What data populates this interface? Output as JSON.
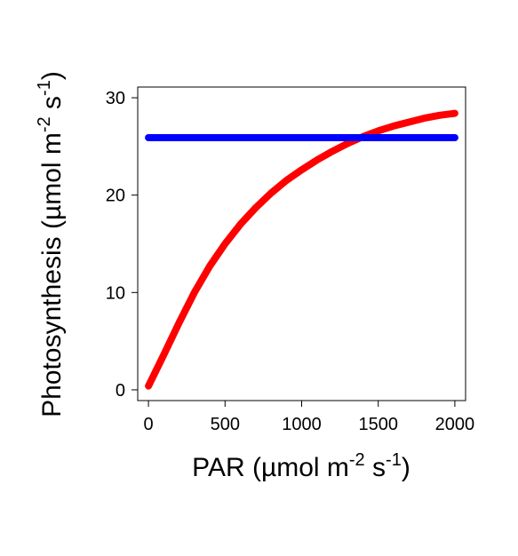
{
  "chart_data": {
    "type": "line",
    "title": "",
    "xlabel": {
      "text": "PAR (µmol m",
      "sup1": "-2",
      "mid": " s",
      "sup2": "-1",
      "end": ")"
    },
    "ylabel": {
      "text": "Photosynthesis (µmol m",
      "sup1": "-2",
      "mid": " s",
      "sup2": "-1",
      "end": ")"
    },
    "xlim": [
      -70,
      2070
    ],
    "ylim": [
      -1.1,
      31.1
    ],
    "x_ticks": [
      0,
      500,
      1000,
      1500,
      2000
    ],
    "y_ticks": [
      0,
      10,
      20,
      30
    ],
    "grid": false,
    "legend": "none",
    "series": [
      {
        "color": "#ff0000",
        "x": [
          0,
          100,
          200,
          300,
          400,
          500,
          600,
          700,
          800,
          900,
          1000,
          1100,
          1200,
          1300,
          1400,
          1500,
          1600,
          1700,
          1800,
          1900,
          2000
        ],
        "y": [
          0.4,
          3.6,
          6.9,
          10.0,
          12.7,
          15.0,
          17.0,
          18.7,
          20.2,
          21.5,
          22.6,
          23.6,
          24.5,
          25.3,
          26.0,
          26.6,
          27.1,
          27.5,
          27.9,
          28.2,
          28.4
        ]
      },
      {
        "color": "#0000ff",
        "x": [
          0,
          2000
        ],
        "y": [
          25.9,
          25.9
        ]
      }
    ]
  }
}
